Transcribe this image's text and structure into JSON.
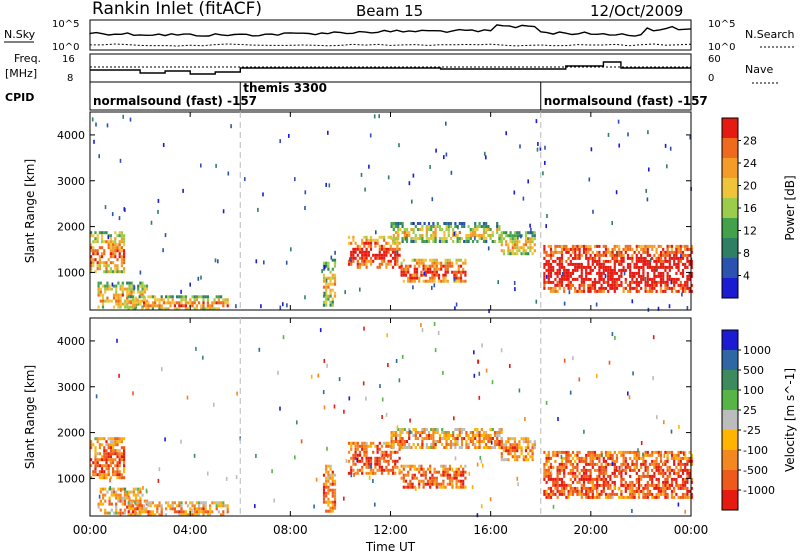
{
  "header": {
    "station": "Rankin Inlet (fitACF)",
    "beam": "Beam 15",
    "date": "12/Oct/2009"
  },
  "strips": {
    "nsky_label": "N.Sky",
    "nsearch_label": "N.Search",
    "freq_label_1": "Freq.",
    "freq_label_2": "[MHz]",
    "nave_label": "Nave",
    "cpid_label": "CPID",
    "nsky_ticks": [
      "10^5",
      "10^0"
    ],
    "nsearch_ticks": [
      "10^5",
      "10^0"
    ],
    "freq_ticks": [
      "16",
      "8"
    ],
    "nave_ticks": [
      "60",
      "0"
    ]
  },
  "cpid_segments": [
    {
      "label": "normalsound (fast) -157",
      "start_hour": 0
    },
    {
      "label": "themis 3300",
      "start_hour": 6
    },
    {
      "label": "normalsound (fast) -157",
      "start_hour": 18
    }
  ],
  "colors": {
    "power_scale": [
      "#1b1bd2",
      "#2b52b0",
      "#2e7f63",
      "#43a04b",
      "#9ccc4c",
      "#f0c43a",
      "#f39c27",
      "#ee6a1c",
      "#e51b12"
    ],
    "velocity_scale": [
      "#1b1bd2",
      "#2e67a4",
      "#3c8a5e",
      "#57b547",
      "#bcbcbc",
      "#ffb400",
      "#f48820",
      "#ee5a1a",
      "#e51b12"
    ]
  },
  "chart_data": [
    {
      "type": "heatmap",
      "name": "power",
      "xlabel": "",
      "ylabel": "Slant Range [km]",
      "xlim": [
        0,
        24
      ],
      "ylim": [
        180,
        4500
      ],
      "x_ticks": [
        "00:00",
        "04:00",
        "08:00",
        "12:00",
        "16:00",
        "20:00",
        "00:00"
      ],
      "y_ticks": [
        "1000",
        "2000",
        "3000",
        "4000"
      ],
      "colorbar_label": "Power [dB]",
      "colorbar_ticks": [
        "4",
        "8",
        "12",
        "16",
        "20",
        "24",
        "28"
      ],
      "echo_regions": [
        {
          "start_hour": 0.0,
          "end_hour": 1.4,
          "min_km": 1000,
          "max_km": 1900,
          "level": 0.55
        },
        {
          "start_hour": 0.3,
          "end_hour": 2.3,
          "min_km": 250,
          "max_km": 800,
          "level": 0.45
        },
        {
          "start_hour": 1.5,
          "end_hour": 5.5,
          "min_km": 200,
          "max_km": 500,
          "level": 0.5
        },
        {
          "start_hour": 9.3,
          "end_hour": 9.8,
          "min_km": 300,
          "max_km": 1300,
          "level": 0.4
        },
        {
          "start_hour": 10.3,
          "end_hour": 12.4,
          "min_km": 1100,
          "max_km": 1800,
          "level": 0.7
        },
        {
          "start_hour": 12.4,
          "end_hour": 15.0,
          "min_km": 800,
          "max_km": 1300,
          "level": 0.65
        },
        {
          "start_hour": 12.0,
          "end_hour": 16.4,
          "min_km": 1700,
          "max_km": 2100,
          "level": 0.35
        },
        {
          "start_hour": 16.4,
          "end_hour": 17.8,
          "min_km": 1400,
          "max_km": 1900,
          "level": 0.4
        },
        {
          "start_hour": 18.1,
          "end_hour": 24.0,
          "min_km": 600,
          "max_km": 1600,
          "level": 0.85
        }
      ]
    },
    {
      "type": "heatmap",
      "name": "velocity",
      "xlabel": "Time UT",
      "ylabel": "Slant Range [km]",
      "xlim": [
        0,
        24
      ],
      "ylim": [
        180,
        4500
      ],
      "x_ticks": [
        "00:00",
        "04:00",
        "08:00",
        "12:00",
        "16:00",
        "20:00",
        "00:00"
      ],
      "y_ticks": [
        "1000",
        "2000",
        "3000",
        "4000"
      ],
      "colorbar_label": "Velocity [m s^-1]",
      "colorbar_ticks": [
        "1000",
        "500",
        "100",
        "25",
        "-25",
        "-100",
        "-500",
        "-1000"
      ],
      "echo_regions": [
        {
          "start_hour": 0.0,
          "end_hour": 1.4,
          "min_km": 1000,
          "max_km": 1900,
          "level": 0.65
        },
        {
          "start_hour": 0.3,
          "end_hour": 2.3,
          "min_km": 250,
          "max_km": 800,
          "level": 0.45
        },
        {
          "start_hour": 1.5,
          "end_hour": 5.5,
          "min_km": 200,
          "max_km": 500,
          "level": 0.5
        },
        {
          "start_hour": 9.3,
          "end_hour": 9.8,
          "min_km": 300,
          "max_km": 1300,
          "level": 0.6
        },
        {
          "start_hour": 10.3,
          "end_hour": 12.4,
          "min_km": 1100,
          "max_km": 1800,
          "level": 0.75
        },
        {
          "start_hour": 12.4,
          "end_hour": 15.0,
          "min_km": 800,
          "max_km": 1300,
          "level": 0.7
        },
        {
          "start_hour": 12.0,
          "end_hour": 16.4,
          "min_km": 1700,
          "max_km": 2100,
          "level": 0.5
        },
        {
          "start_hour": 16.4,
          "end_hour": 17.8,
          "min_km": 1400,
          "max_km": 1900,
          "level": 0.5
        },
        {
          "start_hour": 18.1,
          "end_hour": 24.0,
          "min_km": 600,
          "max_km": 1600,
          "level": 0.8
        }
      ]
    }
  ]
}
